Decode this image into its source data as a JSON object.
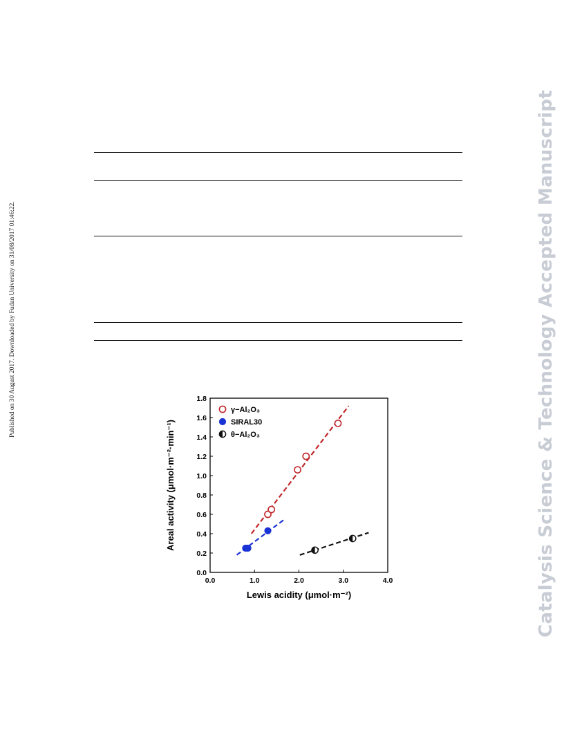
{
  "sidebar_left": {
    "text": "Published on 30 August 2017. Downloaded by Fudan University on 31/08/2017 01:46:22."
  },
  "sidebar_right": {
    "text": "Catalysis Science & Technology Accepted Manuscript"
  },
  "table": {
    "rule_count": 5
  },
  "chart_data": {
    "type": "scatter",
    "xlabel": "Lewis acidity (μmol·m⁻²)",
    "ylabel": "Areal activity (μmol·m⁻²·min⁻¹)",
    "xlim": [
      0.0,
      4.0
    ],
    "ylim": [
      0.0,
      1.8
    ],
    "xticks": [
      "0.0",
      "1.0",
      "2.0",
      "3.0",
      "4.0"
    ],
    "yticks": [
      "0.0",
      "0.2",
      "0.4",
      "0.6",
      "0.8",
      "1.0",
      "1.2",
      "1.4",
      "1.6",
      "1.8"
    ],
    "grid": false,
    "legend_position": "top-left",
    "series": [
      {
        "name": "γ−Al₂O₃",
        "marker": "open-circle",
        "color": "#c0262a",
        "points": [
          [
            1.3,
            0.6
          ],
          [
            1.38,
            0.65
          ],
          [
            1.97,
            1.06
          ],
          [
            2.16,
            1.2
          ],
          [
            2.88,
            1.54
          ]
        ],
        "fit_line": [
          [
            0.93,
            0.4
          ],
          [
            3.12,
            1.72
          ]
        ]
      },
      {
        "name": "SIRAL30",
        "marker": "filled-circle",
        "color": "#1a33d4",
        "points": [
          [
            0.8,
            0.25
          ],
          [
            0.85,
            0.25
          ],
          [
            1.3,
            0.43
          ]
        ],
        "fit_line": [
          [
            0.6,
            0.18
          ],
          [
            1.65,
            0.54
          ]
        ]
      },
      {
        "name": "θ−Al₂O₃",
        "marker": "half-filled-circle",
        "color": "#111111",
        "points": [
          [
            2.36,
            0.23
          ],
          [
            3.21,
            0.35
          ]
        ],
        "fit_line": [
          [
            2.02,
            0.18
          ],
          [
            3.57,
            0.41
          ]
        ]
      }
    ]
  }
}
